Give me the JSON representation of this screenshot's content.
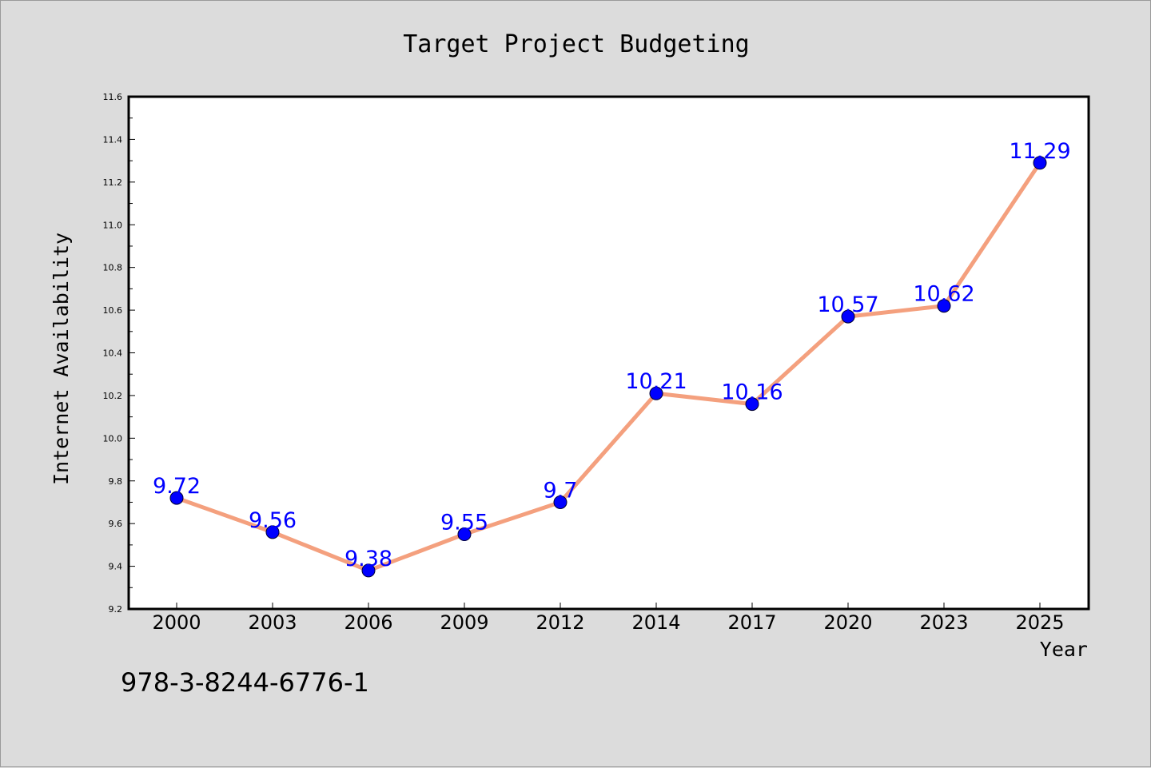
{
  "chart_data": {
    "type": "line",
    "title": "Target Project Budgeting",
    "xlabel": "Year",
    "ylabel": "Internet Availability",
    "categories": [
      "2000",
      "2003",
      "2006",
      "2009",
      "2012",
      "2014",
      "2017",
      "2020",
      "2023",
      "2025"
    ],
    "series": [
      {
        "values": [
          9.72,
          9.56,
          9.38,
          9.55,
          9.7,
          10.21,
          10.16,
          10.57,
          10.62,
          11.29
        ]
      }
    ],
    "data_labels": [
      "9.72",
      "9.56",
      "9.38",
      "9.55",
      "9.7",
      "10.21",
      "10.16",
      "10.57",
      "10.62",
      "11.29"
    ],
    "ylim": [
      9.2,
      11.6
    ],
    "yticks": [
      "9.2",
      "9.4",
      "9.6",
      "9.8",
      "10.0",
      "10.2",
      "10.4",
      "10.6",
      "10.8",
      "11.0",
      "11.2",
      "11.4",
      "11.6"
    ],
    "grid": false,
    "colors": {
      "line": "#f4a07e",
      "marker": "#0000ff",
      "data_label": "#0000ff",
      "background": "#dcdcdc"
    }
  },
  "annotation": "978-3-8244-6776-1"
}
